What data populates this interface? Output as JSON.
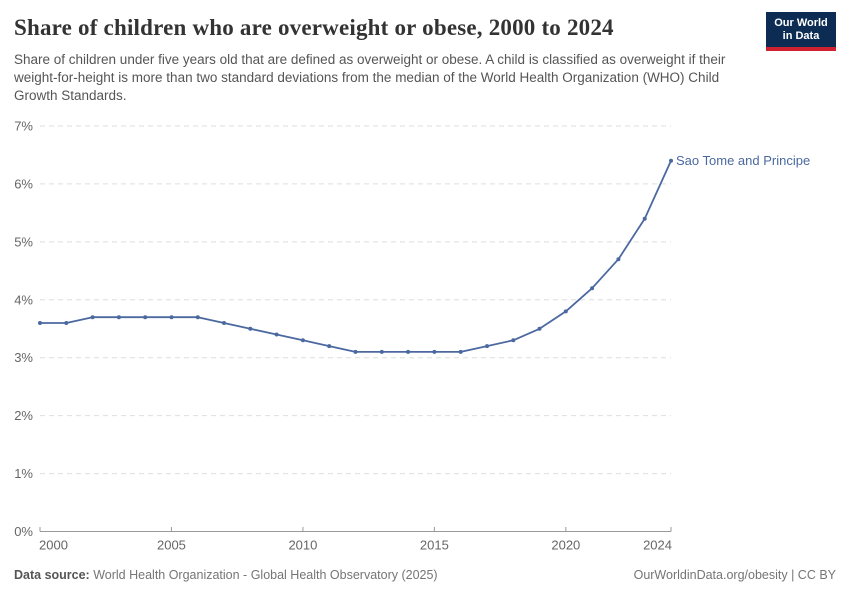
{
  "header": {
    "title": "Share of children who are overweight or obese, 2000 to 2024",
    "logo": {
      "line1": "Our World",
      "line2": "in Data",
      "bg_color": "#0d2c54",
      "accent_color": "#cf2130"
    }
  },
  "subtitle": "Share of children under five years old that are defined as overweight or obese. A child is classified as overweight if their weight-for-height is more than two standard deviations from the median of the World Health Organization (WHO) Child Growth Standards.",
  "chart_data": {
    "type": "line",
    "title": "Share of children who are overweight or obese, 2000 to 2024",
    "xlabel": "",
    "ylabel": "",
    "xlim": [
      2000,
      2024
    ],
    "ylim": [
      0,
      7
    ],
    "grid": "horizontal-dashed",
    "legend_position": "end-of-line-label",
    "x": [
      2000,
      2001,
      2002,
      2003,
      2004,
      2005,
      2006,
      2007,
      2008,
      2009,
      2010,
      2011,
      2012,
      2013,
      2014,
      2015,
      2016,
      2017,
      2018,
      2019,
      2020,
      2021,
      2022,
      2023,
      2024
    ],
    "series": [
      {
        "name": "Sao Tome and Principe",
        "color": "#4b69a0",
        "values": [
          3.6,
          3.6,
          3.7,
          3.7,
          3.7,
          3.7,
          3.7,
          3.6,
          3.5,
          3.4,
          3.3,
          3.2,
          3.1,
          3.1,
          3.1,
          3.1,
          3.1,
          3.2,
          3.3,
          3.5,
          3.8,
          4.2,
          4.7,
          5.4,
          6.4
        ]
      }
    ],
    "xticks": [
      {
        "value": 2000,
        "label": "2000"
      },
      {
        "value": 2005,
        "label": "2005"
      },
      {
        "value": 2010,
        "label": "2010"
      },
      {
        "value": 2015,
        "label": "2015"
      },
      {
        "value": 2020,
        "label": "2020"
      },
      {
        "value": 2024,
        "label": "2024"
      }
    ],
    "yticks": [
      {
        "value": 0,
        "label": "0%"
      },
      {
        "value": 1,
        "label": "1%"
      },
      {
        "value": 2,
        "label": "2%"
      },
      {
        "value": 3,
        "label": "3%"
      },
      {
        "value": 4,
        "label": "4%"
      },
      {
        "value": 5,
        "label": "5%"
      },
      {
        "value": 6,
        "label": "6%"
      },
      {
        "value": 7,
        "label": "7%"
      }
    ],
    "colors": {
      "grid": "#dedede",
      "axis": "#9a9a9a",
      "tick_text": "#666666"
    }
  },
  "footer": {
    "datasource_label": "Data source:",
    "datasource_value": "World Health Organization - Global Health Observatory (2025)",
    "credit": "OurWorldinData.org/obesity | CC BY"
  }
}
